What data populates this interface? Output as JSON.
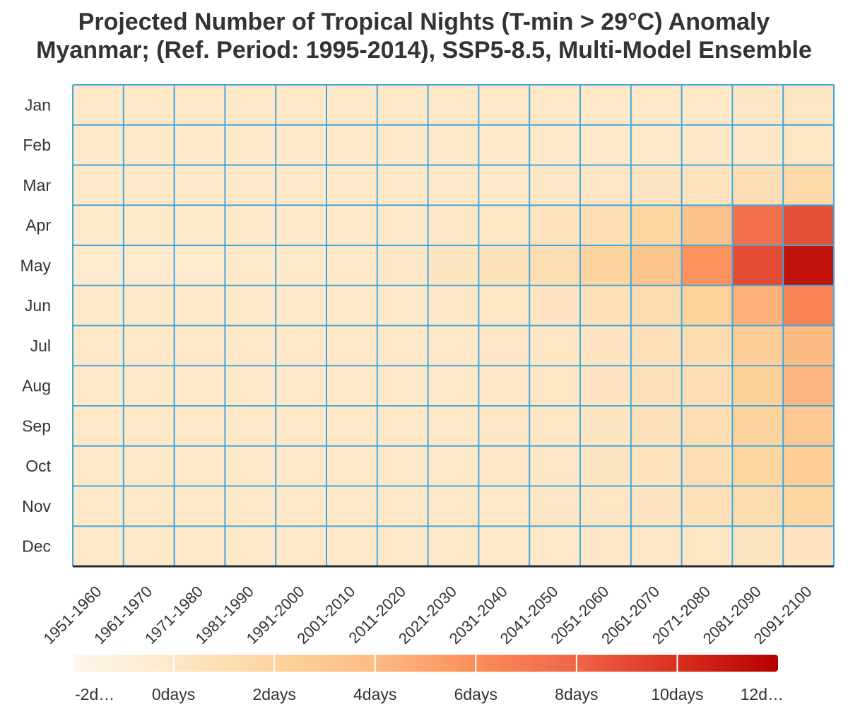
{
  "chart_data": {
    "type": "heatmap",
    "title_line1": "Projected Number of Tropical Nights (T-min > 29°C) Anomaly",
    "title_line2": "Myanmar; (Ref. Period: 1995-2014), SSP5-8.5, Multi-Model Ensemble",
    "xlabel": "",
    "ylabel": "",
    "x": [
      "1951-1960",
      "1961-1970",
      "1971-1980",
      "1981-1990",
      "1991-2000",
      "2001-2010",
      "2011-2020",
      "2021-2030",
      "2031-2040",
      "2041-2050",
      "2051-2060",
      "2061-2070",
      "2071-2080",
      "2081-2090",
      "2091-2100"
    ],
    "y": [
      "Jan",
      "Feb",
      "Mar",
      "Apr",
      "May",
      "Jun",
      "Jul",
      "Aug",
      "Sep",
      "Oct",
      "Nov",
      "Dec"
    ],
    "values": [
      [
        0,
        0,
        0,
        0,
        0,
        0,
        0,
        0,
        0,
        0,
        0,
        0,
        0,
        0.1,
        0.2
      ],
      [
        0,
        0,
        0,
        0,
        0,
        0,
        0,
        0,
        0,
        0,
        0,
        0,
        0.1,
        0.1,
        0.2
      ],
      [
        0,
        0,
        0,
        0,
        0,
        0,
        0,
        0,
        0,
        0.1,
        0.2,
        0.3,
        0.5,
        0.9,
        1.5
      ],
      [
        -0.1,
        -0.1,
        -0.1,
        0,
        0,
        0,
        0,
        0.1,
        0.2,
        0.5,
        1.0,
        1.8,
        3.5,
        7.5,
        8.8
      ],
      [
        -0.2,
        -0.2,
        -0.2,
        -0.1,
        -0.1,
        0,
        0.1,
        0.3,
        0.6,
        1.1,
        2.0,
        3.2,
        5.8,
        9.0,
        11.2
      ],
      [
        0,
        0,
        0,
        0,
        0,
        0,
        0,
        0.1,
        0.2,
        0.4,
        0.7,
        1.2,
        2.2,
        4.5,
        6.5
      ],
      [
        0,
        0,
        0,
        0,
        0,
        0,
        0,
        0,
        0.1,
        0.2,
        0.4,
        0.7,
        1.2,
        2.5,
        4.0
      ],
      [
        0,
        0,
        0,
        0,
        0,
        0,
        0,
        0,
        0.1,
        0.2,
        0.4,
        0.6,
        1.1,
        2.3,
        4.2
      ],
      [
        0,
        0,
        0,
        0,
        0,
        0,
        0,
        0,
        0.1,
        0.2,
        0.3,
        0.6,
        1.0,
        2.0,
        3.0
      ],
      [
        0,
        0,
        0,
        0,
        0,
        0,
        0,
        0,
        0.1,
        0.1,
        0.3,
        0.5,
        0.9,
        1.8,
        2.6
      ],
      [
        0,
        0,
        0,
        0,
        0,
        0,
        0,
        0,
        0,
        0.1,
        0.2,
        0.4,
        0.7,
        1.2,
        1.8
      ],
      [
        0,
        0,
        0,
        0,
        0,
        0,
        0,
        0,
        0,
        0,
        0.1,
        0.1,
        0.2,
        0.3,
        0.4
      ]
    ],
    "colorbar": {
      "min": -2,
      "max": 12,
      "ticks": [
        -2,
        0,
        2,
        4,
        6,
        8,
        10,
        12
      ],
      "tick_labels": [
        "-2d…",
        "0days",
        "2days",
        "4days",
        "6days",
        "8days",
        "10days",
        "12d…"
      ],
      "colors": [
        "#fff7ec",
        "#fee8c8",
        "#fdd49e",
        "#fdbb84",
        "#fc8d59",
        "#ef6548",
        "#d7301f",
        "#b30000"
      ]
    },
    "grid_color": "#3fa9e0",
    "grid": true
  }
}
